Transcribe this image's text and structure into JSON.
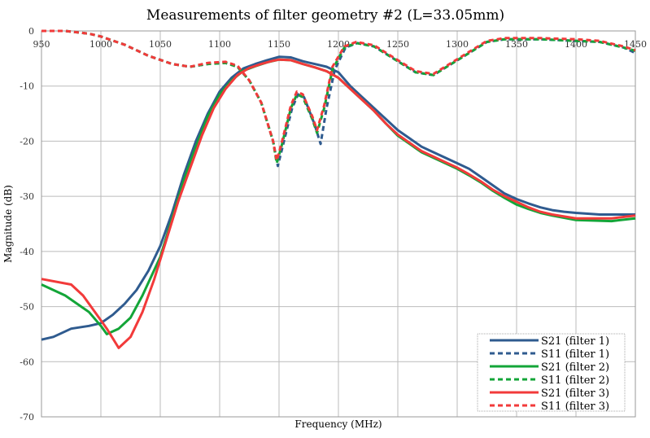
{
  "chart_data": {
    "type": "line",
    "title": "Measurements of filter geometry #2 (L=33.05mm)",
    "xlabel": "Frequency (MHz)",
    "ylabel": "Magnitude (dB)",
    "xlim": [
      950,
      1450
    ],
    "ylim": [
      -70,
      0
    ],
    "xticks": [
      950,
      1000,
      1050,
      1100,
      1150,
      1200,
      1250,
      1300,
      1350,
      1400,
      1450
    ],
    "yticks": [
      0,
      -10,
      -20,
      -30,
      -40,
      -50,
      -60,
      -70
    ],
    "grid": true,
    "legend": "bottom-right",
    "series": [
      {
        "name": "S21 (filter 1)",
        "color": "#2f5b8f",
        "dash": false,
        "x": [
          950,
          960,
          975,
          990,
          1000,
          1010,
          1020,
          1030,
          1040,
          1050,
          1060,
          1070,
          1080,
          1090,
          1100,
          1110,
          1120,
          1130,
          1140,
          1150,
          1160,
          1170,
          1180,
          1190,
          1200,
          1210,
          1220,
          1230,
          1240,
          1250,
          1260,
          1270,
          1280,
          1290,
          1300,
          1310,
          1320,
          1330,
          1340,
          1350,
          1360,
          1370,
          1380,
          1390,
          1400,
          1420,
          1450
        ],
        "y": [
          -56,
          -55.5,
          -54,
          -53.5,
          -53,
          -51.5,
          -49.5,
          -47,
          -43.5,
          -39,
          -33,
          -26,
          -20,
          -15,
          -11,
          -8.5,
          -6.8,
          -6,
          -5.3,
          -4.7,
          -4.8,
          -5.5,
          -6,
          -6.5,
          -7.5,
          -10,
          -12,
          -14,
          -16,
          -18,
          -19.5,
          -21,
          -22,
          -23,
          -24,
          -25,
          -26.5,
          -28,
          -29.5,
          -30.5,
          -31.3,
          -32,
          -32.5,
          -32.8,
          -33,
          -33.3,
          -33.3
        ]
      },
      {
        "name": "S11 (filter 1)",
        "color": "#2f5b8f",
        "dash": true,
        "x": [
          950,
          970,
          990,
          1000,
          1020,
          1040,
          1060,
          1075,
          1090,
          1105,
          1115,
          1125,
          1135,
          1145,
          1149,
          1153,
          1161,
          1166,
          1171,
          1180,
          1185,
          1190,
          1197,
          1206,
          1216,
          1230,
          1250,
          1265,
          1280,
          1295,
          1310,
          1325,
          1340,
          1370,
          1400,
          1420,
          1440,
          1450
        ],
        "y": [
          0,
          0,
          -0.5,
          -1,
          -2.5,
          -4.5,
          -6,
          -6.5,
          -6,
          -5.8,
          -6.5,
          -9,
          -13,
          -20,
          -24.5,
          -21,
          -14,
          -11.5,
          -12,
          -17,
          -20.5,
          -14,
          -7,
          -3,
          -2.2,
          -2.8,
          -5.5,
          -7.5,
          -8,
          -6,
          -4,
          -2,
          -1.5,
          -1.5,
          -1.8,
          -2,
          -3,
          -4
        ]
      },
      {
        "name": "S21 (filter 2)",
        "color": "#13a538",
        "dash": false,
        "x": [
          950,
          970,
          990,
          1000,
          1005,
          1015,
          1025,
          1035,
          1050,
          1060,
          1070,
          1080,
          1090,
          1100,
          1110,
          1120,
          1130,
          1140,
          1150,
          1160,
          1170,
          1180,
          1190,
          1200,
          1210,
          1220,
          1230,
          1240,
          1250,
          1260,
          1270,
          1280,
          1290,
          1300,
          1310,
          1320,
          1330,
          1340,
          1350,
          1360,
          1370,
          1380,
          1400,
          1430,
          1450
        ],
        "y": [
          -46,
          -48,
          -51,
          -53.5,
          -55,
          -54,
          -52,
          -48,
          -41,
          -34,
          -27,
          -21,
          -15.5,
          -11.5,
          -9,
          -7.2,
          -6.4,
          -5.7,
          -5.2,
          -5.3,
          -6,
          -6.6,
          -7.3,
          -8.5,
          -10.5,
          -12.5,
          -14.5,
          -16.8,
          -19,
          -20.5,
          -22,
          -23,
          -24,
          -25,
          -26.2,
          -27.5,
          -29,
          -30.3,
          -31.5,
          -32.3,
          -33,
          -33.5,
          -34.3,
          -34.5,
          -34
        ]
      },
      {
        "name": "S11 (filter 2)",
        "color": "#13a538",
        "dash": true,
        "x": [
          950,
          970,
          990,
          1000,
          1020,
          1040,
          1060,
          1075,
          1090,
          1105,
          1115,
          1125,
          1135,
          1145,
          1148,
          1152,
          1160,
          1165,
          1170,
          1178,
          1182,
          1188,
          1195,
          1205,
          1215,
          1230,
          1250,
          1265,
          1280,
          1295,
          1310,
          1325,
          1340,
          1370,
          1400,
          1420,
          1440,
          1450
        ],
        "y": [
          0,
          0,
          -0.5,
          -1,
          -2.5,
          -4.5,
          -6,
          -6.5,
          -6,
          -5.8,
          -6.5,
          -9,
          -13,
          -20,
          -24,
          -21,
          -14,
          -11.5,
          -12,
          -16,
          -18.5,
          -14,
          -7,
          -3,
          -2.2,
          -2.8,
          -5.5,
          -7.5,
          -8,
          -6,
          -4,
          -2,
          -1.5,
          -1.5,
          -1.8,
          -2,
          -3,
          -3.6
        ]
      },
      {
        "name": "S21 (filter 3)",
        "color": "#f23a3a",
        "dash": false,
        "x": [
          950,
          975,
          985,
          995,
          1005,
          1015,
          1025,
          1035,
          1045,
          1055,
          1065,
          1075,
          1085,
          1095,
          1105,
          1115,
          1125,
          1135,
          1145,
          1150,
          1160,
          1170,
          1180,
          1190,
          1200,
          1210,
          1220,
          1230,
          1240,
          1250,
          1260,
          1270,
          1280,
          1290,
          1300,
          1310,
          1320,
          1330,
          1340,
          1350,
          1360,
          1370,
          1380,
          1400,
          1430,
          1450
        ],
        "y": [
          -45,
          -46,
          -48,
          -51,
          -54,
          -57.5,
          -55.5,
          -51,
          -45,
          -38,
          -31,
          -25,
          -19,
          -14,
          -10.5,
          -8,
          -6.7,
          -6,
          -5.4,
          -5.2,
          -5.3,
          -6,
          -6.6,
          -7.3,
          -8.5,
          -10.5,
          -12.5,
          -14.5,
          -16.8,
          -18.8,
          -20.3,
          -21.8,
          -22.8,
          -23.8,
          -24.8,
          -26,
          -27.3,
          -28.8,
          -30,
          -31,
          -32,
          -32.8,
          -33.3,
          -34,
          -34,
          -33.5
        ]
      },
      {
        "name": "S11 (filter 3)",
        "color": "#f23a3a",
        "dash": true,
        "x": [
          950,
          970,
          990,
          1000,
          1020,
          1040,
          1060,
          1075,
          1090,
          1105,
          1115,
          1125,
          1135,
          1145,
          1148,
          1152,
          1160,
          1165,
          1170,
          1178,
          1182,
          1188,
          1195,
          1205,
          1215,
          1230,
          1250,
          1265,
          1280,
          1295,
          1310,
          1325,
          1340,
          1370,
          1400,
          1420,
          1440,
          1450
        ],
        "y": [
          0,
          0,
          -0.5,
          -1,
          -2.5,
          -4.5,
          -6,
          -6.5,
          -5.8,
          -5.6,
          -6.3,
          -9,
          -13,
          -20,
          -23.5,
          -20.5,
          -13.5,
          -11,
          -11.5,
          -15.5,
          -18,
          -13.5,
          -6.5,
          -2.8,
          -2,
          -2.6,
          -5.3,
          -7.3,
          -7.8,
          -5.8,
          -3.8,
          -1.8,
          -1.3,
          -1.3,
          -1.5,
          -1.8,
          -2.8,
          -3.5
        ]
      }
    ]
  }
}
